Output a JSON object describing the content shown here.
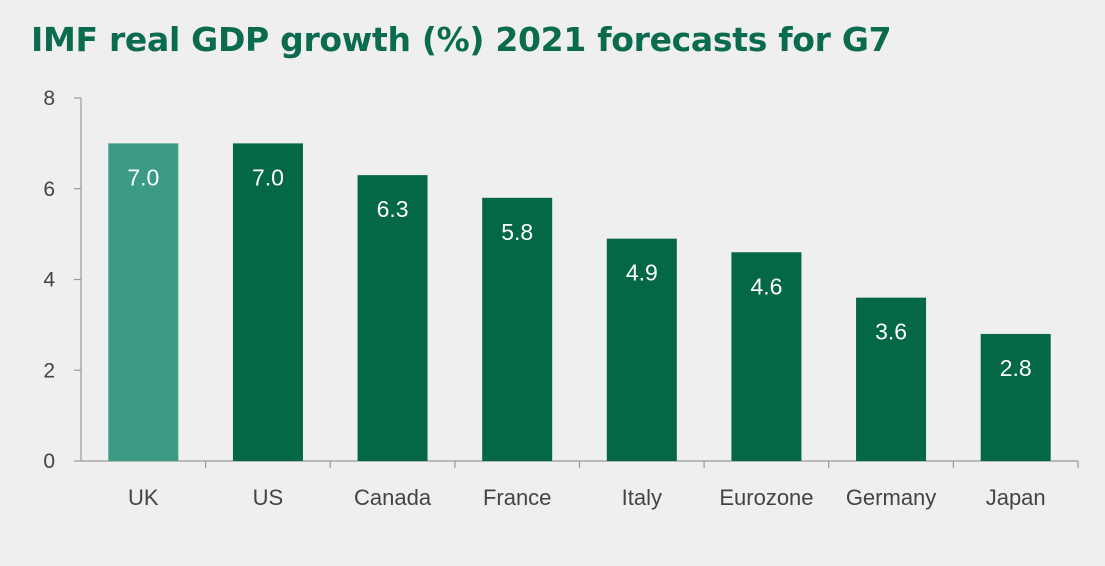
{
  "colors": {
    "background": "#efefef",
    "title": "#0b6b4f",
    "highlight_bar": "#3b9b84",
    "bar": "#046747",
    "axis": "#999999",
    "text": "#444444",
    "data_label": "#ffffff"
  },
  "chart_data": {
    "type": "bar",
    "title": "IMF real GDP growth (%) 2021 forecasts for G7",
    "xlabel": "",
    "ylabel": "",
    "categories": [
      "UK",
      "US",
      "Canada",
      "France",
      "Italy",
      "Eurozone",
      "Germany",
      "Japan"
    ],
    "values": [
      7.0,
      7.0,
      6.3,
      5.8,
      4.9,
      4.6,
      3.6,
      2.8
    ],
    "data_labels": [
      "7.0",
      "7.0",
      "6.3",
      "5.8",
      "4.9",
      "4.6",
      "3.6",
      "2.8"
    ],
    "highlight_category": "UK",
    "ylim": [
      0,
      8
    ],
    "yticks": [
      0,
      2,
      4,
      6,
      8
    ],
    "ytick_labels": [
      "0",
      "2",
      "4",
      "6",
      "8"
    ],
    "grid": false,
    "legend": "none"
  }
}
